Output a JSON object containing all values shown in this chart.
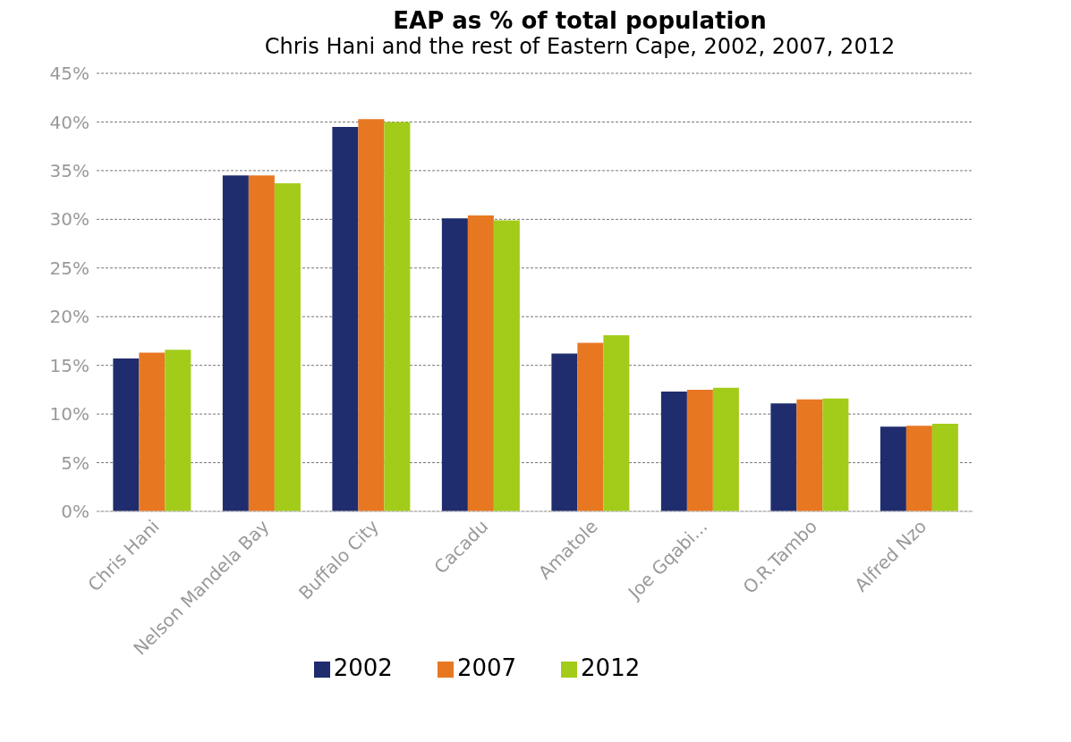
{
  "chart_data": {
    "type": "bar",
    "title": "EAP as % of total population",
    "subtitle": "Chris Hani and the rest of Eastern Cape, 2002, 2007, 2012",
    "categories": [
      "Chris Hani",
      "Nelson Mandela Bay",
      "Buffalo City",
      "Cacadu",
      "Amatole",
      "Joe Gqabi...",
      "O.R.Tambo",
      "Alfred Nzo"
    ],
    "series": [
      {
        "name": "2002",
        "color": "#1f2d6e",
        "values": [
          15.7,
          34.5,
          39.5,
          30.1,
          16.2,
          12.3,
          11.1,
          8.7
        ]
      },
      {
        "name": "2007",
        "color": "#e87722",
        "values": [
          16.3,
          34.5,
          40.3,
          30.4,
          17.3,
          12.5,
          11.5,
          8.8
        ]
      },
      {
        "name": "2012",
        "color": "#a3cc1a",
        "values": [
          16.6,
          33.7,
          40.0,
          29.9,
          18.1,
          12.7,
          11.6,
          9.0
        ]
      }
    ],
    "ylim": [
      0,
      45
    ],
    "yticks": [
      {
        "value": 0,
        "label": "0%"
      },
      {
        "value": 5,
        "label": "5%"
      },
      {
        "value": 10,
        "label": "10%"
      },
      {
        "value": 15,
        "label": "15%"
      },
      {
        "value": 20,
        "label": "20%"
      },
      {
        "value": 25,
        "label": "25%"
      },
      {
        "value": 30,
        "label": "30%"
      },
      {
        "value": 35,
        "label": "35%"
      },
      {
        "value": 40,
        "label": "40%"
      },
      {
        "value": 45,
        "label": "45%"
      }
    ],
    "grid": "y",
    "legend": "bottom"
  }
}
